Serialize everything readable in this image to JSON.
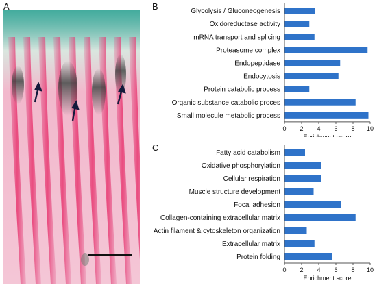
{
  "panels": {
    "a": "A",
    "b": "B",
    "c": "C"
  },
  "colors": {
    "bar": "#2f73c9",
    "axis": "#555555"
  },
  "photo": {
    "description_icons": [
      "arrow-icon",
      "arrow-icon",
      "arrow-icon",
      "scale-bar"
    ]
  },
  "chart_data": [
    {
      "type": "bar",
      "orientation": "horizontal",
      "categories": [
        "Glycolysis / Gluconeogenesis",
        "Oxidoreductase activity",
        "mRNA transport and splicing",
        "Proteasome complex",
        "Endopeptidase",
        "Endocytosis",
        "Protein catabolic process",
        "Organic substance catabolic proces",
        "Small molecule metabolic process"
      ],
      "values": [
        3.6,
        2.9,
        3.5,
        9.7,
        6.5,
        6.3,
        2.9,
        8.3,
        9.8
      ],
      "xlabel": "Enrichment score",
      "xlim": [
        0,
        10
      ],
      "xticks": [
        0,
        2,
        4,
        6,
        8,
        10
      ],
      "grid": false
    },
    {
      "type": "bar",
      "orientation": "horizontal",
      "categories": [
        "Fatty acid catabolism",
        "Oxidative phosphorylation",
        "Cellular respiration",
        "Muscle structure development",
        "Focal adhesion",
        "Collagen-containing extracellular matrix",
        "Actin filament & cytoskeleton organization",
        "Extracellular matrix",
        "Protein folding"
      ],
      "values": [
        2.4,
        4.3,
        4.3,
        3.4,
        6.6,
        8.3,
        2.6,
        3.5,
        5.6
      ],
      "xlabel": "Enrichment score",
      "xlim": [
        0,
        10
      ],
      "xticks": [
        0,
        2,
        4,
        6,
        8,
        10
      ],
      "grid": false
    }
  ]
}
